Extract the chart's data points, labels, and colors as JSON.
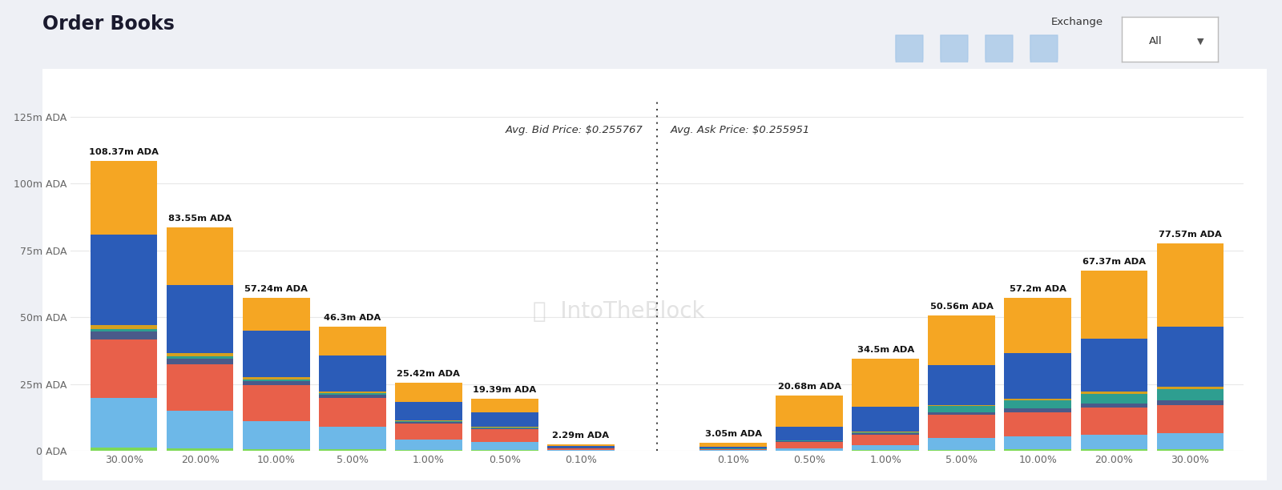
{
  "title": "Order Books",
  "avg_bid_price": "Avg. Bid Price: $0.255767",
  "avg_ask_price": "Avg. Ask Price: $0.255951",
  "background_color": "#eef0f5",
  "chart_bg": "#ffffff",
  "bid_labels": [
    "30.00%",
    "20.00%",
    "10.00%",
    "5.00%",
    "1.00%",
    "0.50%",
    "0.10%"
  ],
  "ask_labels": [
    "0.10%",
    "0.50%",
    "1.00%",
    "5.00%",
    "10.00%",
    "20.00%",
    "30.00%"
  ],
  "bid_totals": [
    108.37,
    83.55,
    57.24,
    46.3,
    25.42,
    19.39,
    2.29
  ],
  "ask_totals": [
    3.05,
    20.68,
    34.5,
    50.56,
    57.2,
    67.37,
    77.57
  ],
  "ylim": [
    0,
    132
  ],
  "yticks": [
    0,
    25,
    50,
    75,
    100,
    125
  ],
  "ytick_labels": [
    "0 ADA",
    "25m ADA",
    "50m ADA",
    "75m ADA",
    "100m ADA",
    "125m ADA"
  ],
  "colors": {
    "lime": "#7ED957",
    "light_blue": "#6DB8E8",
    "coral": "#E8604A",
    "dark_slate": "#4A5A8A",
    "teal": "#2E9E90",
    "gold_thin": "#D4A020",
    "blue": "#2B5CB8",
    "orange": "#F5A623"
  },
  "bid_layers": {
    "lime": [
      1.2,
      0.9,
      0.6,
      0.5,
      0.25,
      0.18,
      0.04
    ],
    "light_blue": [
      18.5,
      14.0,
      10.5,
      8.5,
      4.0,
      3.0,
      0.38
    ],
    "coral": [
      22.0,
      17.5,
      13.5,
      10.8,
      6.0,
      4.8,
      0.57
    ],
    "dark_slate": [
      2.8,
      2.2,
      1.6,
      1.3,
      0.65,
      0.52,
      0.09
    ],
    "teal": [
      1.0,
      0.8,
      0.6,
      0.5,
      0.25,
      0.2,
      0.04
    ],
    "gold_thin": [
      1.5,
      1.2,
      0.9,
      0.7,
      0.32,
      0.26,
      0.05
    ],
    "blue": [
      34.0,
      25.5,
      17.3,
      13.5,
      6.9,
      5.4,
      0.73
    ],
    "orange": [
      27.37,
      21.45,
      12.24,
      10.5,
      7.05,
      5.03,
      0.39
    ]
  },
  "ask_layers": {
    "lime": [
      0.04,
      0.13,
      0.22,
      0.42,
      0.52,
      0.62,
      0.72
    ],
    "light_blue": [
      0.25,
      0.9,
      1.8,
      4.5,
      5.0,
      5.5,
      6.0
    ],
    "coral": [
      0.35,
      2.2,
      4.0,
      8.5,
      9.0,
      10.0,
      10.5
    ],
    "dark_slate": [
      0.09,
      0.35,
      0.62,
      1.1,
      1.3,
      1.5,
      1.7
    ],
    "teal": [
      0.04,
      0.18,
      0.35,
      2.2,
      3.2,
      3.8,
      4.2
    ],
    "gold_thin": [
      0.04,
      0.13,
      0.22,
      0.45,
      0.55,
      0.65,
      0.75
    ],
    "blue": [
      0.74,
      5.0,
      9.2,
      15.0,
      17.0,
      20.0,
      22.5
    ],
    "orange": [
      1.5,
      11.79,
      18.09,
      18.39,
      20.63,
      25.3,
      31.2
    ]
  }
}
